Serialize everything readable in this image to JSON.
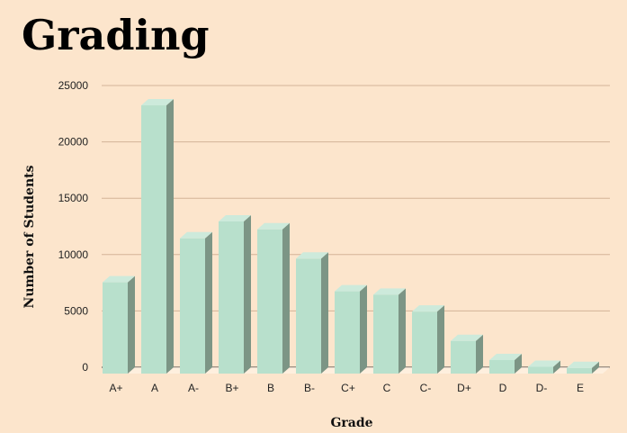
{
  "title": "Grading",
  "chart_data": {
    "type": "bar",
    "title": "Grading",
    "xlabel": "Grade",
    "ylabel": "Number of Students",
    "categories": [
      "A+",
      "A",
      "A-",
      "B+",
      "B",
      "B-",
      "C+",
      "C",
      "C-",
      "D+",
      "D",
      "D-",
      "E"
    ],
    "values": [
      8100,
      23800,
      12000,
      13500,
      12800,
      10200,
      7300,
      7000,
      5500,
      2900,
      1200,
      600,
      500
    ],
    "ylim": [
      0,
      25000
    ],
    "yticks": [
      0,
      5000,
      10000,
      15000,
      20000,
      25000
    ],
    "grid": true,
    "legend": "none",
    "colors": {
      "bar_front": "#b8e0cc",
      "bar_top": "#cdeadb",
      "bar_side": "#7c9585",
      "grid": "#d3b497",
      "baseline": "#333333",
      "background": "#fce5cc"
    }
  }
}
